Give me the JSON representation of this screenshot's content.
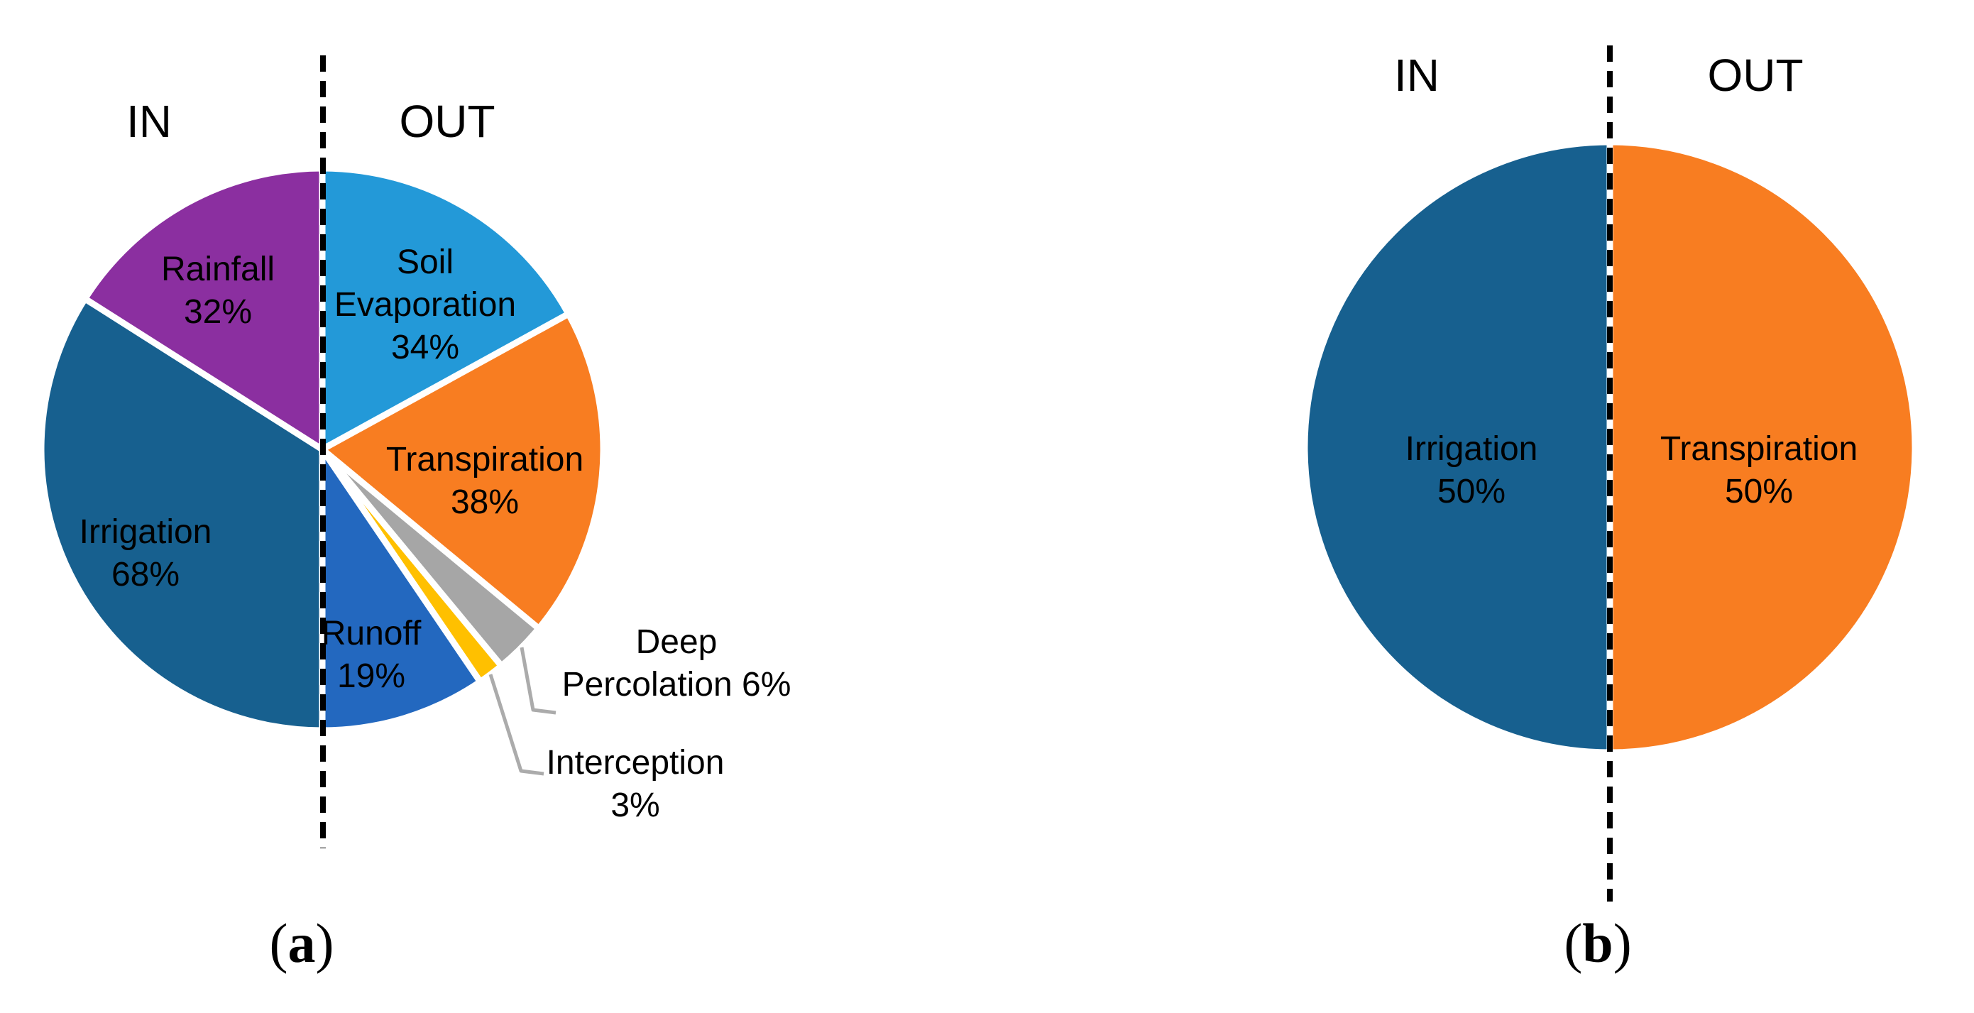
{
  "figure": {
    "divider_color": "#000000",
    "leader_line_color": "#ABABAB",
    "text_color": "#000000",
    "background_color": "#FFFFFF"
  },
  "chart_data": [
    {
      "type": "pie",
      "caption": "(a)",
      "in_label": "IN",
      "out_label": "OUT",
      "note": "left half = inputs (100%), right half = outputs (100%), divided by dashed line",
      "slices": [
        {
          "name": "Soil Evaporation",
          "side": "OUT",
          "pct": 34,
          "color": "#2399D8"
        },
        {
          "name": "Transpiration",
          "side": "OUT",
          "pct": 38,
          "color": "#F87D21"
        },
        {
          "name": "Deep Percolation",
          "side": "OUT",
          "pct": 6,
          "color": "#A6A6A6"
        },
        {
          "name": "Interception",
          "side": "OUT",
          "pct": 3,
          "color": "#FFC000"
        },
        {
          "name": "Runoff",
          "side": "OUT",
          "pct": 19,
          "color": "#2368BF"
        },
        {
          "name": "Irrigation",
          "side": "IN",
          "pct": 68,
          "color": "#17608F"
        },
        {
          "name": "Rainfall",
          "side": "IN",
          "pct": 32,
          "color": "#8B2FA0"
        }
      ]
    },
    {
      "type": "pie",
      "caption": "(b)",
      "in_label": "IN",
      "out_label": "OUT",
      "note": "left half = inputs (100%), right half = outputs (100%), divided by dashed line",
      "slices": [
        {
          "name": "Transpiration",
          "side": "OUT",
          "pct": 50,
          "color": "#F87D21"
        },
        {
          "name": "Irrigation",
          "side": "IN",
          "pct": 50,
          "color": "#17608F"
        }
      ]
    }
  ]
}
